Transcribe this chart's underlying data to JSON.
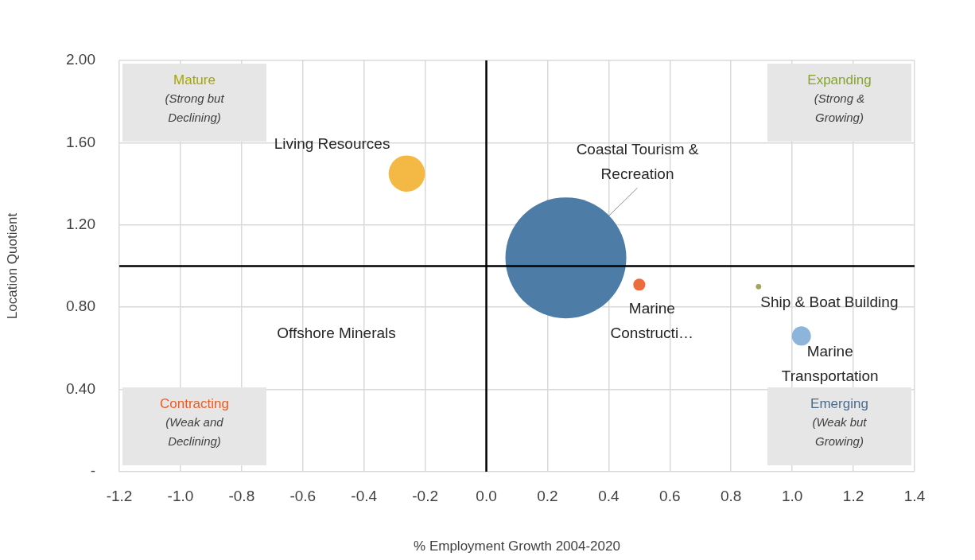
{
  "chart_data": {
    "type": "bubble",
    "xlabel": "% Employment Growth 2004-2020",
    "ylabel": "Location Quotient",
    "xlim": [
      -1.2,
      1.4
    ],
    "xticks": [
      -1.2,
      {
        "value": -1,
        "label": "-1.0"
      },
      -0.8,
      -0.6,
      -0.4,
      -0.2,
      {
        "value": 0,
        "label": "0.0"
      },
      0.2,
      0.4,
      0.6,
      0.8,
      {
        "value": 1,
        "label": "1.0"
      },
      1.2,
      1.4
    ],
    "ylim": [
      0,
      2
    ],
    "yticks": [
      {
        "value": 0,
        "label": "-"
      },
      {
        "value": 0.4,
        "label": "0.40"
      },
      {
        "value": 0.8,
        "label": "0.80"
      },
      {
        "value": 1.2,
        "label": "1.20"
      },
      {
        "value": 1.6,
        "label": "1.60"
      },
      {
        "value": 2,
        "label": "2.00"
      }
    ],
    "grid": true,
    "ref_lines": [
      {
        "axis": "x",
        "value": 0,
        "color": "#000000"
      },
      {
        "axis": "y",
        "value": 1,
        "color": "#000000"
      }
    ],
    "series": [
      {
        "name": "Living Resources",
        "color": "#f4b844",
        "x": [
          -0.26
        ],
        "values": [
          1.45
        ],
        "sizes": [
          0.09
        ]
      },
      {
        "name": "Coastal Tourism & Recreation",
        "color": "#4d7ca6",
        "x": [
          0.26
        ],
        "values": [
          1.04
        ],
        "sizes": [
          1
        ]
      },
      {
        "name": "Marine Constructi…",
        "color": "#ed6c3d",
        "x": [
          0.5
        ],
        "values": [
          0.91
        ],
        "sizes": [
          0.01
        ]
      },
      {
        "name": "Ship & Boat Building",
        "color": "#a0a55a",
        "x": [
          0.89
        ],
        "values": [
          0.9
        ],
        "sizes": [
          0.002
        ]
      },
      {
        "name": "Marine Transportation",
        "color": "#8db4da",
        "x": [
          1.03
        ],
        "values": [
          0.66
        ],
        "sizes": [
          0.025
        ]
      }
    ],
    "annotations": [
      "Mature",
      "(Strong but Declining)",
      "Expanding",
      "(Strong & Growing)",
      "Contracting",
      "(Weak and Declining)",
      "Emerging",
      "(Weak but Growing)",
      "Offshore Minerals"
    ]
  }
}
